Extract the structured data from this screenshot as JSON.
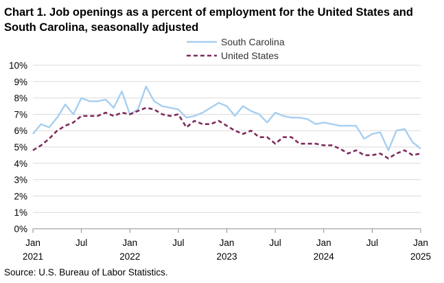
{
  "chart_data": {
    "type": "line",
    "title": "Chart 1. Job openings as a percent of employment for the United States and South Carolina, seasonally adjusted",
    "source": "Source: U.S. Bureau of Labor Statistics.",
    "xlabel": "",
    "ylabel": "",
    "ylim": [
      0,
      10
    ],
    "y_ticks": [
      "0%",
      "1%",
      "2%",
      "3%",
      "4%",
      "5%",
      "6%",
      "7%",
      "8%",
      "9%",
      "10%"
    ],
    "x_ticks": [
      {
        "index": 0,
        "month": "Jan",
        "year": "2021"
      },
      {
        "index": 6,
        "month": "Jul",
        "year": ""
      },
      {
        "index": 12,
        "month": "Jan",
        "year": "2022"
      },
      {
        "index": 18,
        "month": "Jul",
        "year": ""
      },
      {
        "index": 24,
        "month": "Jan",
        "year": "2023"
      },
      {
        "index": 30,
        "month": "Jul",
        "year": ""
      },
      {
        "index": 36,
        "month": "Jan",
        "year": "2024"
      },
      {
        "index": 42,
        "month": "Jul",
        "year": ""
      },
      {
        "index": 48,
        "month": "Jan",
        "year": "2025"
      }
    ],
    "grid": true,
    "legend_position": "top-right",
    "series": [
      {
        "name": "South Carolina",
        "color": "#a6cef0",
        "style": "solid",
        "values": [
          5.8,
          6.4,
          6.2,
          6.8,
          7.6,
          7.0,
          8.0,
          7.8,
          7.8,
          7.9,
          7.4,
          8.4,
          7.0,
          7.3,
          8.7,
          7.8,
          7.5,
          7.4,
          7.3,
          6.8,
          6.9,
          7.1,
          7.4,
          7.7,
          7.5,
          6.9,
          7.5,
          7.2,
          7.0,
          6.5,
          7.1,
          6.9,
          6.8,
          6.8,
          6.7,
          6.4,
          6.5,
          6.4,
          6.3,
          6.3,
          6.3,
          5.5,
          5.8,
          5.9,
          4.8,
          6.0,
          6.1,
          5.3,
          4.9
        ]
      },
      {
        "name": "United States",
        "color": "#7d2b5c",
        "style": "dashed",
        "values": [
          4.8,
          5.1,
          5.5,
          6.0,
          6.3,
          6.5,
          6.9,
          6.9,
          6.9,
          7.1,
          6.9,
          7.1,
          7.0,
          7.2,
          7.4,
          7.3,
          7.0,
          6.9,
          7.0,
          6.2,
          6.6,
          6.4,
          6.4,
          6.6,
          6.3,
          6.0,
          5.8,
          6.0,
          5.6,
          5.6,
          5.2,
          5.6,
          5.6,
          5.2,
          5.2,
          5.2,
          5.1,
          5.1,
          4.9,
          4.6,
          4.8,
          4.5,
          4.5,
          4.6,
          4.3,
          4.6,
          4.8,
          4.5,
          4.6
        ]
      }
    ]
  }
}
